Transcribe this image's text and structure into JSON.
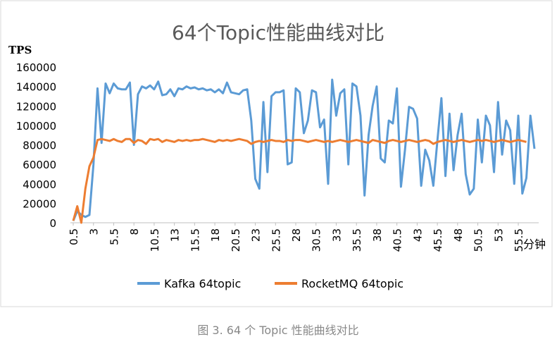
{
  "chart_data": {
    "type": "line",
    "title": "64个Topic性能曲线对比",
    "ylabel": "TPS",
    "xlabel": "分钟",
    "caption": "图 3. 64 个 Topic 性能曲线对比",
    "x": [
      0.5,
      1,
      1.5,
      2,
      2.5,
      3,
      3.5,
      4,
      4.5,
      5,
      5.5,
      6,
      6.5,
      7,
      7.5,
      8,
      8.5,
      9,
      9.5,
      10,
      10.5,
      11,
      11.5,
      12,
      12.5,
      13,
      13.5,
      14,
      14.5,
      15,
      15.5,
      16,
      16.5,
      17,
      17.5,
      18,
      18.5,
      19,
      19.5,
      20,
      20.5,
      21,
      21.5,
      22,
      22.5,
      23,
      23.5,
      24,
      24.5,
      25,
      25.5,
      26,
      26.5,
      27,
      27.5,
      28,
      28.5,
      29,
      29.5,
      30,
      30.5,
      31,
      31.5,
      32,
      32.5,
      33,
      33.5,
      34,
      34.5,
      35,
      35.5,
      36,
      36.5,
      37,
      37.5,
      38,
      38.5,
      39,
      39.5,
      40,
      40.5,
      41,
      41.5,
      42,
      42.5,
      43,
      43.5,
      44,
      44.5,
      45,
      45.5,
      46,
      46.5,
      47,
      47.5,
      48,
      48.5,
      49,
      49.5,
      50,
      50.5,
      51,
      51.5,
      52,
      52.5,
      53,
      53.5,
      54,
      54.5,
      55,
      55.5,
      56,
      56.5,
      57,
      57.5
    ],
    "xlim": [
      0.5,
      57.5
    ],
    "xticks": [
      0.5,
      3,
      5.5,
      8,
      10.5,
      13,
      15.5,
      18,
      20.5,
      23,
      25.5,
      28,
      30.5,
      33,
      35.5,
      38,
      40.5,
      43,
      45.5,
      48,
      50.5,
      53,
      55.5
    ],
    "ylim": [
      0,
      160000
    ],
    "yticks": [
      0,
      20000,
      40000,
      60000,
      80000,
      100000,
      120000,
      140000,
      160000
    ],
    "grid": false,
    "legend": "bottom",
    "series": [
      {
        "name": "Kafka 64topic",
        "color": "#5b9bd5",
        "values": [
          2000,
          12000,
          8000,
          6000,
          8000,
          60000,
          138000,
          82000,
          143000,
          133000,
          143000,
          138000,
          137000,
          137000,
          144000,
          80000,
          132000,
          140000,
          138000,
          141000,
          137000,
          145000,
          131000,
          132000,
          137000,
          130000,
          138000,
          137000,
          140000,
          138000,
          139000,
          137000,
          138000,
          136000,
          137000,
          134000,
          137000,
          133000,
          144000,
          134000,
          133000,
          132000,
          136000,
          137000,
          105000,
          45000,
          35000,
          124000,
          52000,
          130000,
          134000,
          134000,
          136000,
          60000,
          62000,
          138000,
          134000,
          92000,
          105000,
          136000,
          134000,
          98000,
          106000,
          40000,
          147000,
          110000,
          133000,
          137000,
          60000,
          143000,
          140000,
          110000,
          28000,
          90000,
          120000,
          140000,
          66000,
          62000,
          105000,
          102000,
          138000,
          37000,
          75000,
          119000,
          117000,
          107000,
          38000,
          75000,
          64000,
          38000,
          84000,
          128000,
          48000,
          112000,
          54000,
          90000,
          112000,
          50000,
          29000,
          35000,
          106000,
          62000,
          110000,
          100000,
          52000,
          124000,
          70000,
          105000,
          95000,
          40000,
          110000,
          30000,
          46000,
          110000,
          76000
        ]
      },
      {
        "name": "RocketMQ 64topic",
        "color": "#ed7d31",
        "values": [
          2000,
          17000,
          0,
          35000,
          58000,
          67000,
          85000,
          86000,
          85000,
          84000,
          86000,
          84000,
          83000,
          86000,
          86000,
          82000,
          85000,
          84000,
          81000,
          86000,
          85000,
          86000,
          83000,
          85000,
          84000,
          83000,
          85000,
          84000,
          85000,
          84000,
          85000,
          85000,
          86000,
          85000,
          84000,
          83000,
          85000,
          84000,
          85000,
          84000,
          85000,
          86000,
          85000,
          84000,
          81000,
          83000,
          84000,
          83000,
          84000,
          85000,
          84000,
          84000,
          83000,
          85000,
          84000,
          85000,
          85000,
          84000,
          83000,
          84000,
          85000,
          84000,
          83000,
          84000,
          83000,
          84000,
          85000,
          84000,
          83000,
          84000,
          85000,
          84000,
          83000,
          82000,
          85000,
          84000,
          83000,
          82000,
          84000,
          85000,
          84000,
          83000,
          84000,
          85000,
          84000,
          83000,
          84000,
          85000,
          84000,
          81000,
          83000,
          84000,
          85000,
          84000,
          83000,
          84000,
          85000,
          84000,
          83000,
          84000,
          85000,
          84000,
          85000,
          84000,
          83000,
          84000,
          85000,
          84000,
          83000,
          84000,
          85000,
          84000,
          83000,
          null,
          null
        ]
      }
    ]
  }
}
